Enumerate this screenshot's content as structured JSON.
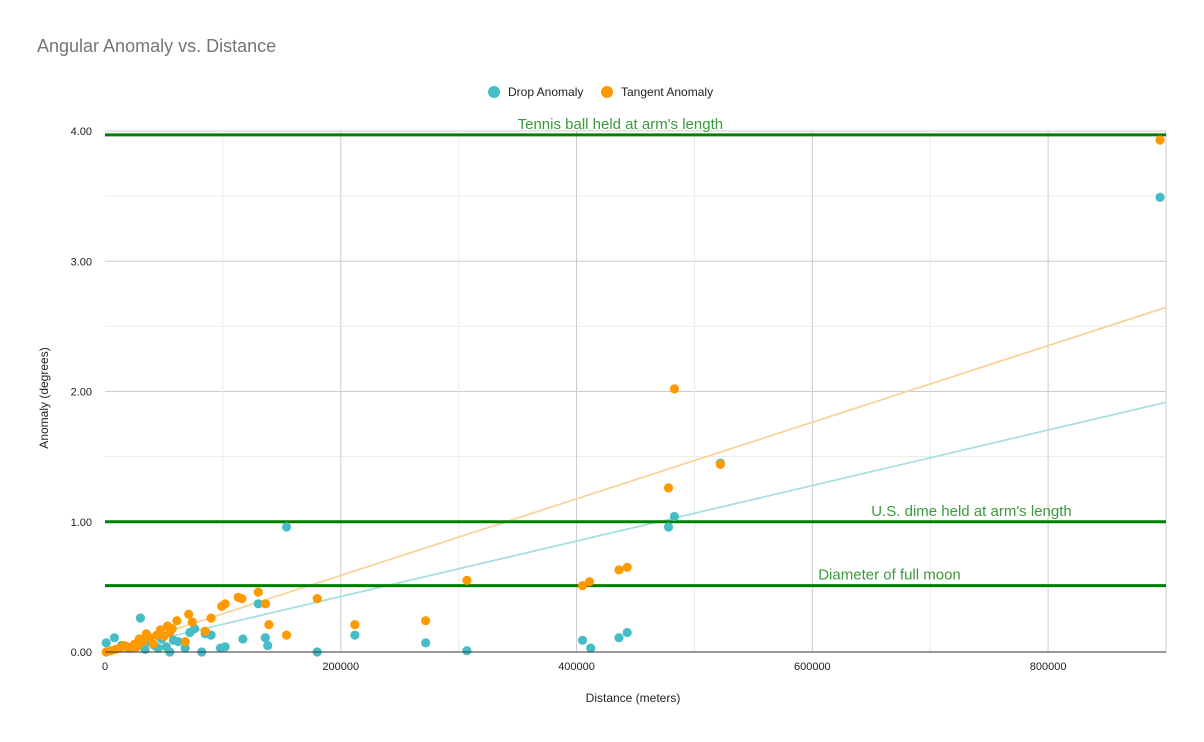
{
  "chart_data": {
    "type": "scatter",
    "title": "Angular Anomaly vs. Distance",
    "xlabel": "Distance (meters)",
    "ylabel": "Anomaly (degrees)",
    "xlim": [
      0,
      900000
    ],
    "ylim": [
      0,
      4
    ],
    "x_ticks": [
      "0",
      "200000",
      "400000",
      "600000",
      "800000"
    ],
    "x_tick_values": [
      0,
      200000,
      400000,
      600000,
      800000
    ],
    "y_ticks": [
      "0.00",
      "1.00",
      "2.00",
      "3.00",
      "4.00"
    ],
    "y_tick_values": [
      0,
      1,
      2,
      3,
      4
    ],
    "grid": true,
    "legend": "top-center",
    "colors": {
      "drop": "#46bdc6",
      "tangent": "#ff9900",
      "reference": "#008000"
    },
    "series": [
      {
        "name": "Drop Anomaly",
        "color": "#46bdc6",
        "points": [
          [
            1000,
            0.07
          ],
          [
            8000,
            0.11
          ],
          [
            14000,
            0.05
          ],
          [
            20000,
            0.03
          ],
          [
            25000,
            0.04
          ],
          [
            30000,
            0.26
          ],
          [
            34000,
            0.02
          ],
          [
            38000,
            0.08
          ],
          [
            42000,
            0.05
          ],
          [
            45000,
            0.03
          ],
          [
            48000,
            0.1
          ],
          [
            52000,
            0.04
          ],
          [
            55000,
            0.0
          ],
          [
            58000,
            0.09
          ],
          [
            62000,
            0.08
          ],
          [
            68000,
            0.03
          ],
          [
            72000,
            0.15
          ],
          [
            76000,
            0.18
          ],
          [
            82000,
            0.0
          ],
          [
            85000,
            0.14
          ],
          [
            90000,
            0.13
          ],
          [
            98000,
            0.03
          ],
          [
            102000,
            0.04
          ],
          [
            117000,
            0.1
          ],
          [
            130000,
            0.37
          ],
          [
            136000,
            0.11
          ],
          [
            138000,
            0.05
          ],
          [
            154000,
            0.96
          ],
          [
            180000,
            0.0
          ],
          [
            212000,
            0.13
          ],
          [
            272000,
            0.07
          ],
          [
            307000,
            0.01
          ],
          [
            405000,
            0.09
          ],
          [
            412000,
            0.03
          ],
          [
            436000,
            0.11
          ],
          [
            443000,
            0.15
          ],
          [
            478000,
            0.96
          ],
          [
            483000,
            1.04
          ],
          [
            522000,
            1.45
          ],
          [
            895000,
            3.49
          ]
        ]
      },
      {
        "name": "Tangent Anomaly",
        "color": "#ff9900",
        "points": [
          [
            1000,
            0.0
          ],
          [
            5000,
            0.01
          ],
          [
            9000,
            0.02
          ],
          [
            13000,
            0.03
          ],
          [
            16000,
            0.05
          ],
          [
            19000,
            0.04
          ],
          [
            22000,
            0.03
          ],
          [
            25000,
            0.06
          ],
          [
            27000,
            0.04
          ],
          [
            29000,
            0.1
          ],
          [
            32000,
            0.08
          ],
          [
            35000,
            0.14
          ],
          [
            38000,
            0.11
          ],
          [
            41000,
            0.06
          ],
          [
            44000,
            0.13
          ],
          [
            47000,
            0.17
          ],
          [
            50000,
            0.12
          ],
          [
            53000,
            0.2
          ],
          [
            55000,
            0.15
          ],
          [
            57000,
            0.18
          ],
          [
            61000,
            0.24
          ],
          [
            68000,
            0.08
          ],
          [
            71000,
            0.29
          ],
          [
            74000,
            0.23
          ],
          [
            85000,
            0.16
          ],
          [
            90000,
            0.26
          ],
          [
            99000,
            0.35
          ],
          [
            102000,
            0.37
          ],
          [
            113000,
            0.42
          ],
          [
            116000,
            0.41
          ],
          [
            130000,
            0.46
          ],
          [
            136000,
            0.37
          ],
          [
            139000,
            0.21
          ],
          [
            154000,
            0.13
          ],
          [
            180000,
            0.41
          ],
          [
            212000,
            0.21
          ],
          [
            272000,
            0.24
          ],
          [
            307000,
            0.55
          ],
          [
            405000,
            0.51
          ],
          [
            411000,
            0.54
          ],
          [
            436000,
            0.63
          ],
          [
            443000,
            0.65
          ],
          [
            478000,
            1.26
          ],
          [
            483000,
            2.02
          ],
          [
            522000,
            1.44
          ],
          [
            895000,
            3.93
          ]
        ]
      }
    ],
    "trendlines": [
      {
        "series": "Drop Anomaly",
        "slope": 2.13e-06,
        "intercept": 0
      },
      {
        "series": "Tangent Anomaly",
        "slope": 2.94e-06,
        "intercept": 0
      }
    ],
    "reference_lines": [
      {
        "y": 3.97,
        "label": "Tennis ball held at arm's length",
        "label_x": 350000
      },
      {
        "y": 1.0,
        "label": "U.S. dime held at arm's length",
        "label_x": 650000
      },
      {
        "y": 0.51,
        "label": "Diameter of full moon",
        "label_x": 605000
      }
    ]
  }
}
